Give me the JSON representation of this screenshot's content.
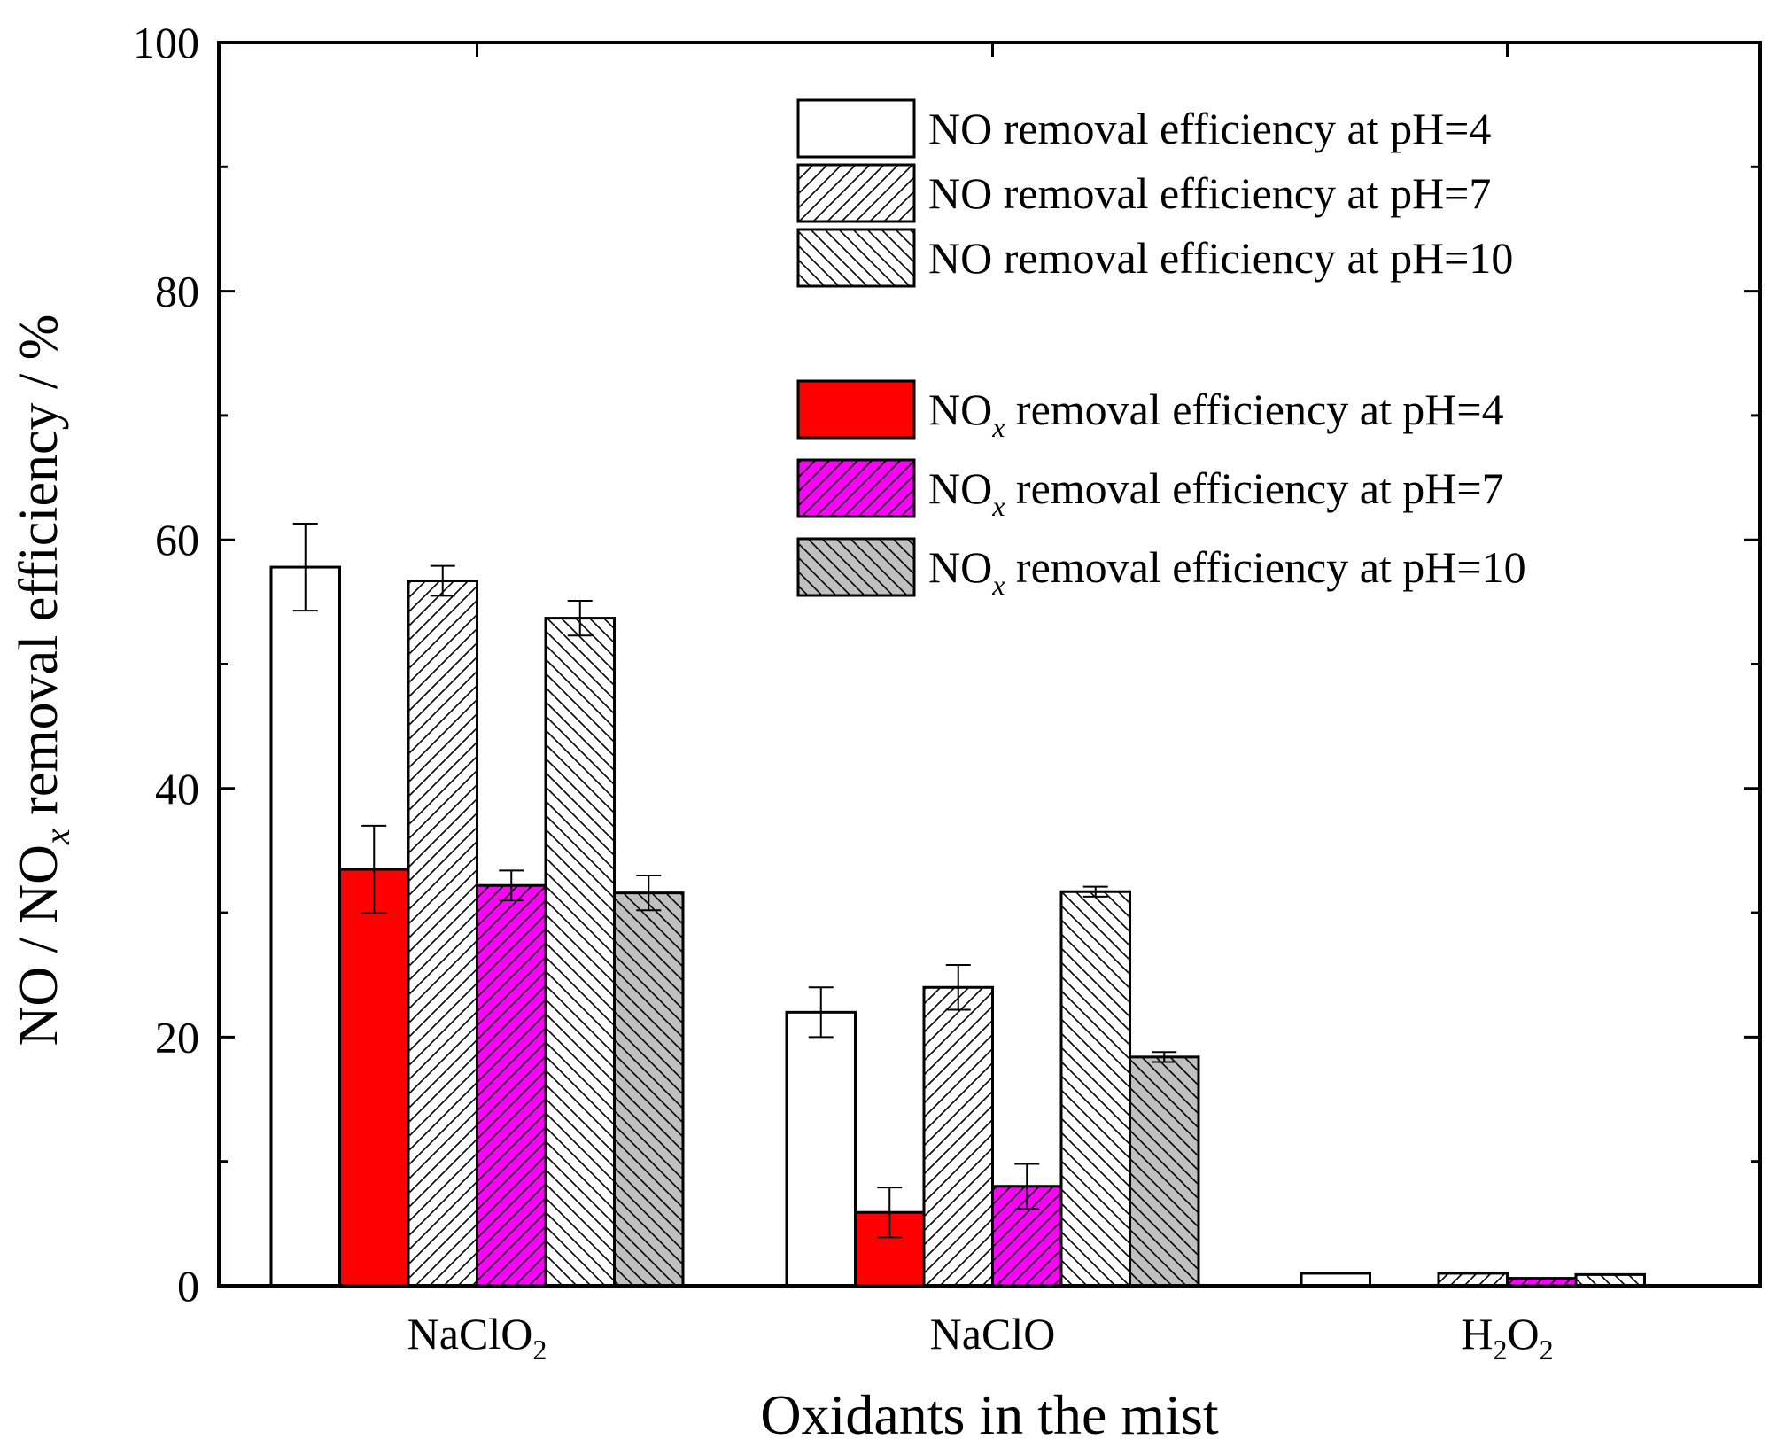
{
  "chart_data": {
    "type": "bar",
    "xlabel": "Oxidants in the mist",
    "ylabel": "NO / NOₓ removal efficiency / %",
    "ylabel_parts": {
      "pre": "NO / NO",
      "sub": "x",
      "post": " removal efficiency / %"
    },
    "ylim": [
      0,
      100
    ],
    "yticks": [
      "0",
      "20",
      "40",
      "60",
      "80",
      "100"
    ],
    "categories": [
      "NaClO2",
      "NaClO",
      "H2O2"
    ],
    "category_labels": [
      {
        "base": "NaClO",
        "sub": "2",
        "tail": ""
      },
      {
        "base": "NaClO",
        "sub": "",
        "tail": ""
      },
      {
        "base": "H",
        "sub": "2",
        "tail": "O",
        "sub2": "2"
      }
    ],
    "series": [
      {
        "name": "NO removal efficiency at pH=4",
        "legend": {
          "pre": "NO",
          "sub": "",
          "post": " removal efficiency at pH=4"
        },
        "fill": "#ffffff",
        "pattern": "none",
        "values": [
          57.8,
          22.0,
          1.0
        ],
        "errors": [
          3.5,
          2.0,
          0.0
        ]
      },
      {
        "name": "NOx removal efficiency at pH=4",
        "legend": {
          "pre": "NO",
          "sub": "x",
          "post": " removal efficiency at pH=4"
        },
        "fill": "#ff0000",
        "pattern": "none",
        "values": [
          33.5,
          5.9,
          0.0
        ],
        "errors": [
          3.5,
          2.0,
          0.0
        ]
      },
      {
        "name": "NO removal efficiency at pH=7",
        "legend": {
          "pre": "NO",
          "sub": "",
          "post": " removal efficiency at pH=7"
        },
        "fill": "#ffffff",
        "pattern": "forward",
        "values": [
          56.7,
          24.0,
          1.0
        ],
        "errors": [
          1.2,
          1.8,
          0.0
        ]
      },
      {
        "name": "NOx removal efficiency at pH=7",
        "legend": {
          "pre": "NO",
          "sub": "x",
          "post": " removal efficiency at pH=7"
        },
        "fill": "#ff00ff",
        "pattern": "forward",
        "values": [
          32.2,
          8.0,
          0.6
        ],
        "errors": [
          1.2,
          1.8,
          0.0
        ]
      },
      {
        "name": "NO removal efficiency at pH=10",
        "legend": {
          "pre": "NO",
          "sub": "",
          "post": " removal efficiency at pH=10"
        },
        "fill": "#ffffff",
        "pattern": "backward",
        "values": [
          53.7,
          31.7,
          0.9
        ],
        "errors": [
          1.4,
          0.4,
          0.0
        ]
      },
      {
        "name": "NOx removal efficiency at pH=10",
        "legend": {
          "pre": "NO",
          "sub": "x",
          "post": " removal efficiency at pH=10"
        },
        "fill": "#c0c0c0",
        "pattern": "backward",
        "values": [
          31.6,
          18.4,
          0.0
        ],
        "errors": [
          1.4,
          0.4,
          0.0
        ]
      }
    ],
    "legend_position": "top-right",
    "legend_groups": [
      [
        0,
        2,
        4
      ],
      [
        1,
        3,
        5
      ]
    ],
    "grid": false
  }
}
